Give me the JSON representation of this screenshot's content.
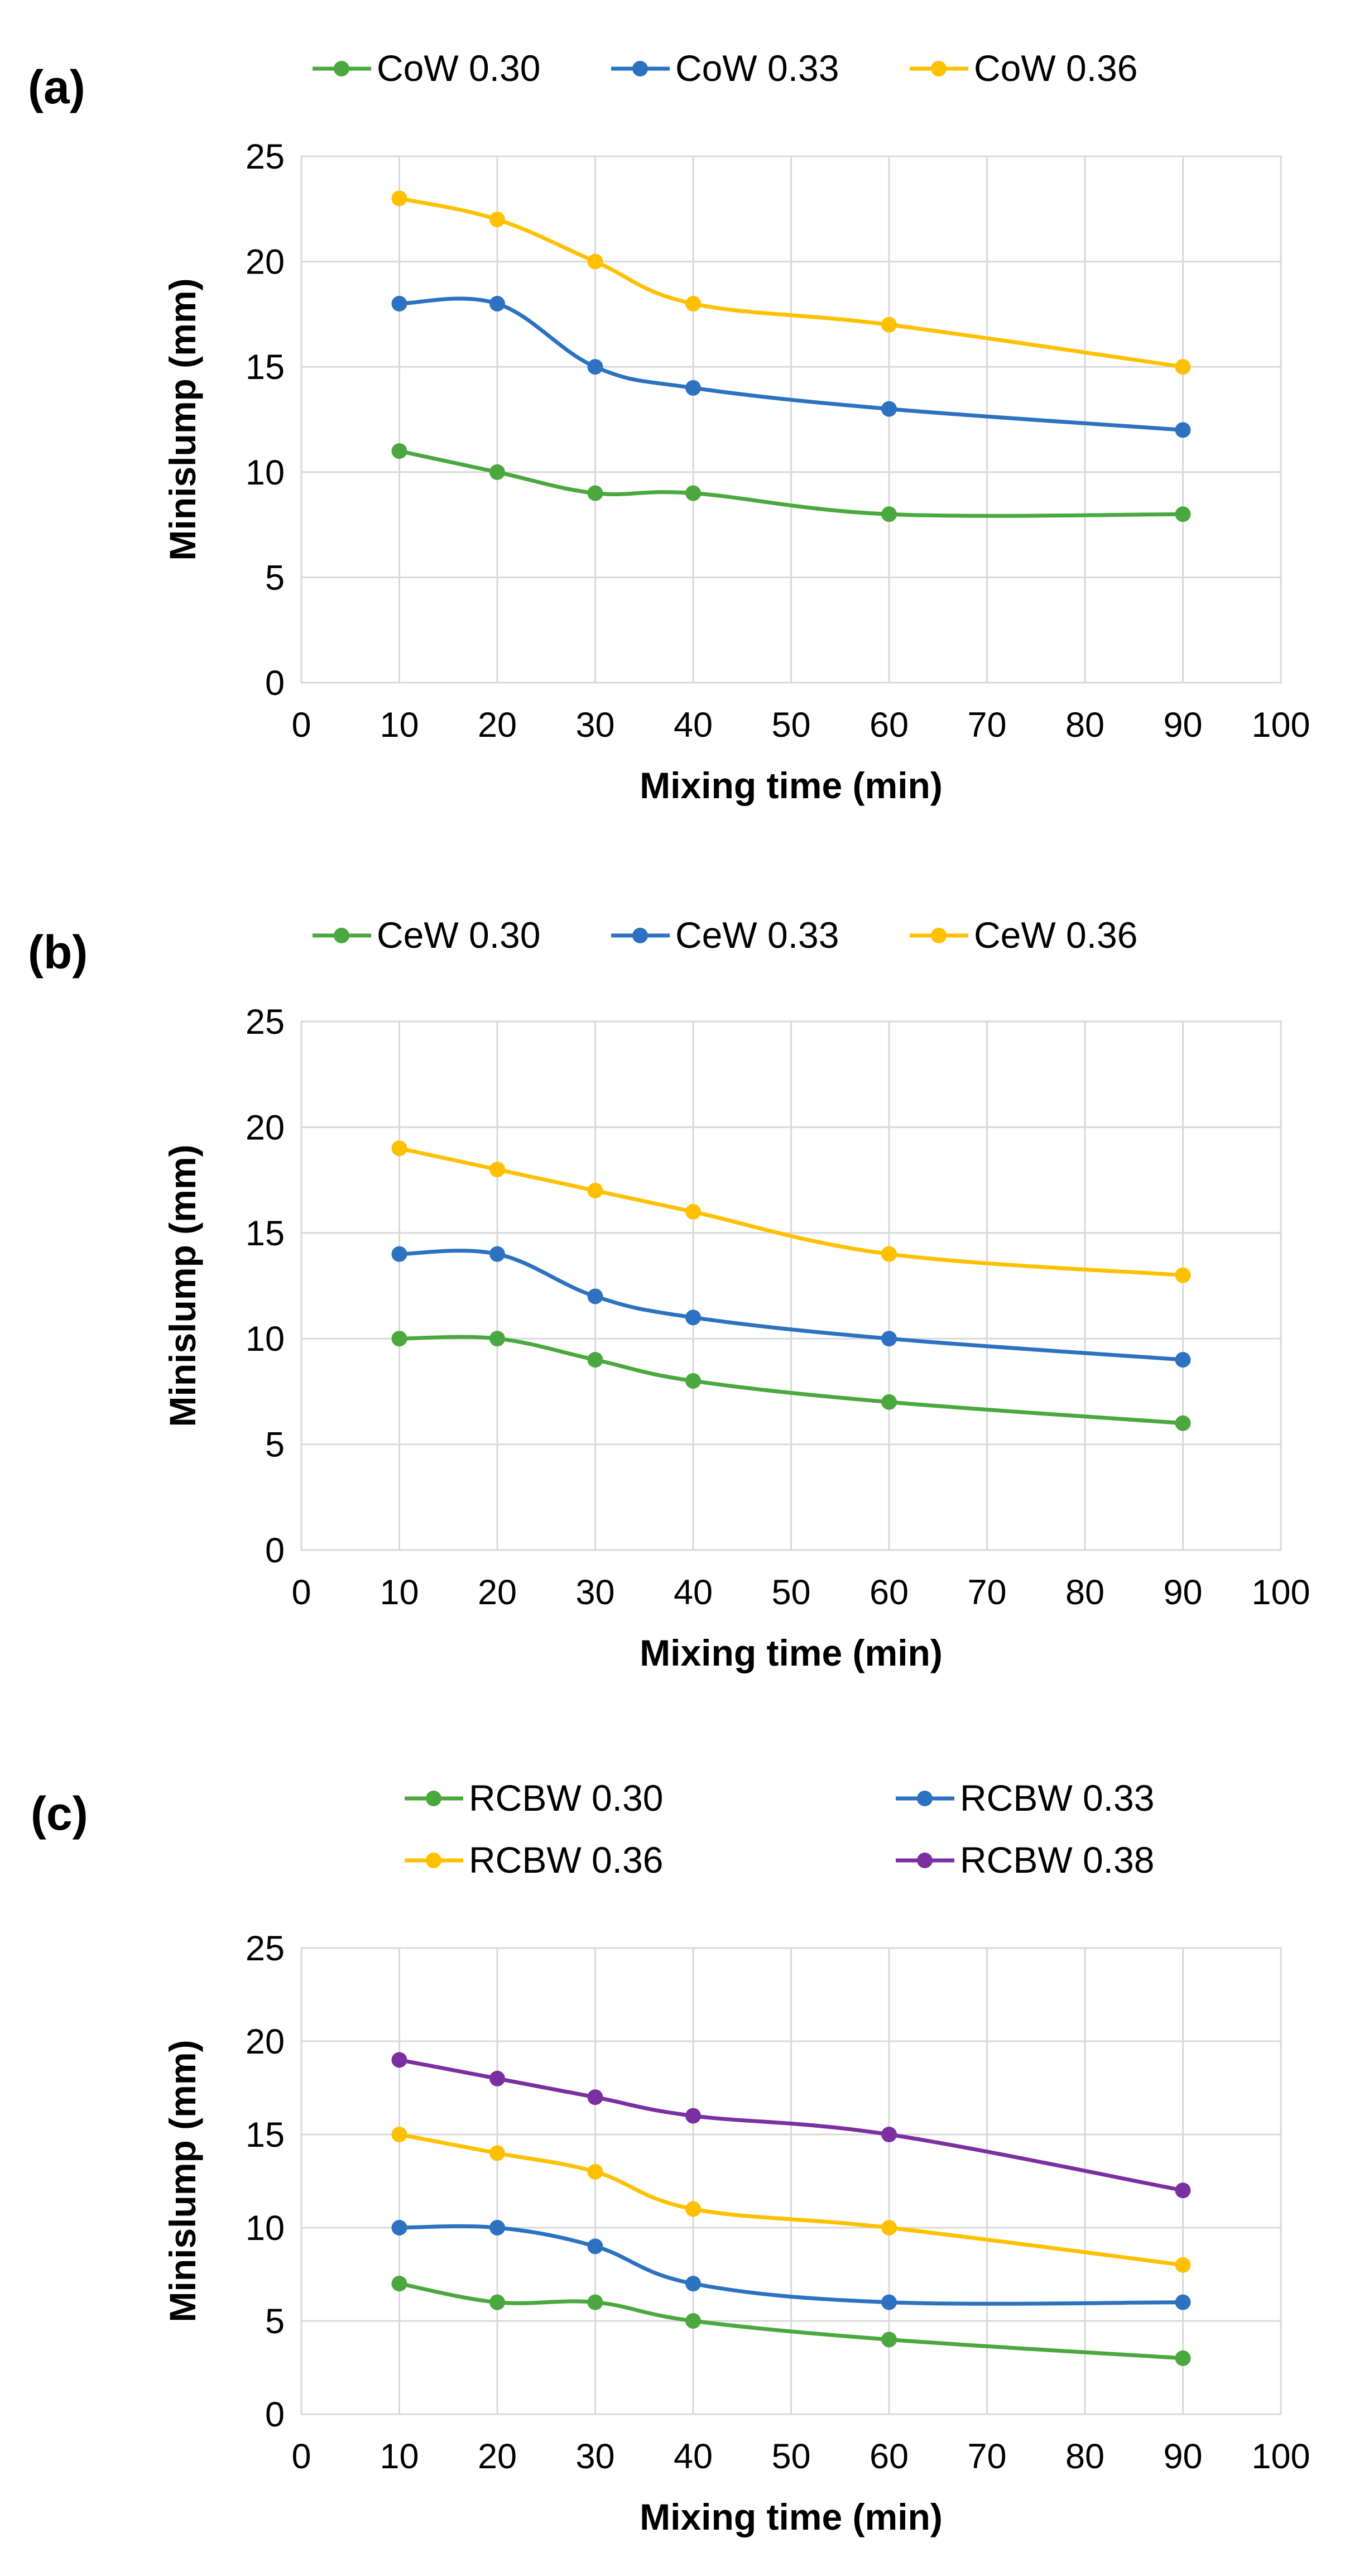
{
  "colors": {
    "green": "#4aa83e",
    "blue": "#2d72c1",
    "yellow": "#ffc000",
    "purple": "#7b2fa0"
  },
  "chart_data": [
    {
      "type": "line",
      "panel_label": "(a)",
      "title": "",
      "xlabel": "Mixing time (min)",
      "ylabel": "Minislump (mm)",
      "xlim": [
        0,
        100
      ],
      "ylim": [
        0,
        25
      ],
      "x_ticks": [
        "0",
        "10",
        "20",
        "30",
        "40",
        "50",
        "60",
        "70",
        "80",
        "90",
        "100"
      ],
      "y_ticks": [
        "0",
        "5",
        "10",
        "15",
        "20",
        "25"
      ],
      "grid": true,
      "legend_position": "top",
      "x": [
        10,
        20,
        30,
        40,
        60,
        90
      ],
      "series": [
        {
          "name": "CoW 0.30",
          "color": "#4aa83e",
          "values": [
            11,
            10,
            9,
            9,
            8,
            8
          ]
        },
        {
          "name": "CoW 0.33",
          "color": "#2d72c1",
          "values": [
            18,
            18,
            15,
            14,
            13,
            12
          ]
        },
        {
          "name": "CoW 0.36",
          "color": "#ffc000",
          "values": [
            23,
            22,
            20,
            18,
            17,
            15
          ]
        }
      ]
    },
    {
      "type": "line",
      "panel_label": "(b)",
      "title": "",
      "xlabel": "Mixing time (min)",
      "ylabel": "Minislump (mm)",
      "xlim": [
        0,
        100
      ],
      "ylim": [
        0,
        25
      ],
      "x_ticks": [
        "0",
        "10",
        "20",
        "30",
        "40",
        "50",
        "60",
        "70",
        "80",
        "90",
        "100"
      ],
      "y_ticks": [
        "0",
        "5",
        "10",
        "15",
        "20",
        "25"
      ],
      "grid": true,
      "legend_position": "top",
      "x": [
        10,
        20,
        30,
        40,
        60,
        90
      ],
      "series": [
        {
          "name": "CeW 0.30",
          "color": "#4aa83e",
          "values": [
            10,
            10,
            9,
            8,
            7,
            6
          ]
        },
        {
          "name": "CeW 0.33",
          "color": "#2d72c1",
          "values": [
            14,
            14,
            12,
            11,
            10,
            9
          ]
        },
        {
          "name": "CeW 0.36",
          "color": "#ffc000",
          "values": [
            19,
            18,
            17,
            16,
            14,
            13
          ]
        }
      ]
    },
    {
      "type": "line",
      "panel_label": "(c)",
      "title": "",
      "xlabel": "Mixing time (min)",
      "ylabel": "Minislump (mm)",
      "xlim": [
        0,
        100
      ],
      "ylim": [
        0,
        25
      ],
      "x_ticks": [
        "0",
        "10",
        "20",
        "30",
        "40",
        "50",
        "60",
        "70",
        "80",
        "90",
        "100"
      ],
      "y_ticks": [
        "0",
        "5",
        "10",
        "15",
        "20",
        "25"
      ],
      "grid": true,
      "legend_position": "top",
      "x": [
        10,
        20,
        30,
        40,
        60,
        90
      ],
      "series": [
        {
          "name": "RCBW 0.30",
          "color": "#4aa83e",
          "values": [
            7,
            6,
            6,
            5,
            4,
            3
          ]
        },
        {
          "name": "RCBW 0.33",
          "color": "#2d72c1",
          "values": [
            10,
            10,
            9,
            7,
            6,
            6
          ]
        },
        {
          "name": "RCBW 0.36",
          "color": "#ffc000",
          "values": [
            15,
            14,
            13,
            11,
            10,
            8
          ]
        },
        {
          "name": "RCBW 0.38",
          "color": "#7b2fa0",
          "values": [
            19,
            18,
            17,
            16,
            15,
            12
          ]
        }
      ]
    }
  ]
}
